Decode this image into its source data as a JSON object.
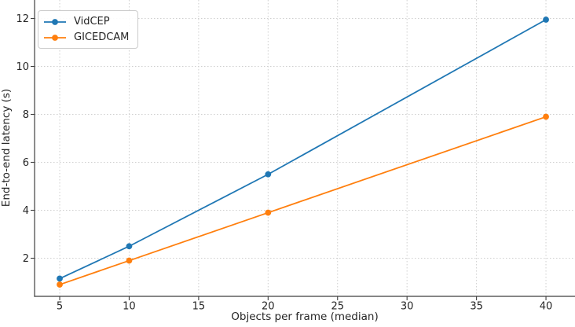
{
  "chart_data": {
    "type": "line",
    "title": "",
    "xlabel": "Objects per frame (median)",
    "ylabel": "End-to-end latency (s)",
    "x": [
      5,
      10,
      20,
      40
    ],
    "series": [
      {
        "name": "VidCEP",
        "color": "#1f77b4",
        "values": [
          1.15,
          2.5,
          5.5,
          11.95
        ]
      },
      {
        "name": "GICEDCAM",
        "color": "#ff7f0e",
        "values": [
          0.9,
          1.9,
          3.9,
          7.9
        ]
      }
    ],
    "xticks": [
      5,
      10,
      15,
      20,
      25,
      30,
      35,
      40
    ],
    "yticks": [
      2,
      4,
      6,
      8,
      10,
      12
    ],
    "xlim": [
      3.19,
      42.09
    ],
    "ylim": [
      0.41,
      12.77
    ],
    "grid": true,
    "legend_position": "upper-left",
    "marker": "circle"
  },
  "style": {
    "grid_color": "#cfcfcf",
    "spine_color": "#3f3f3f",
    "text_color": "#262626",
    "background": "#ffffff",
    "line_width": 1.8,
    "marker_radius": 3.9
  }
}
